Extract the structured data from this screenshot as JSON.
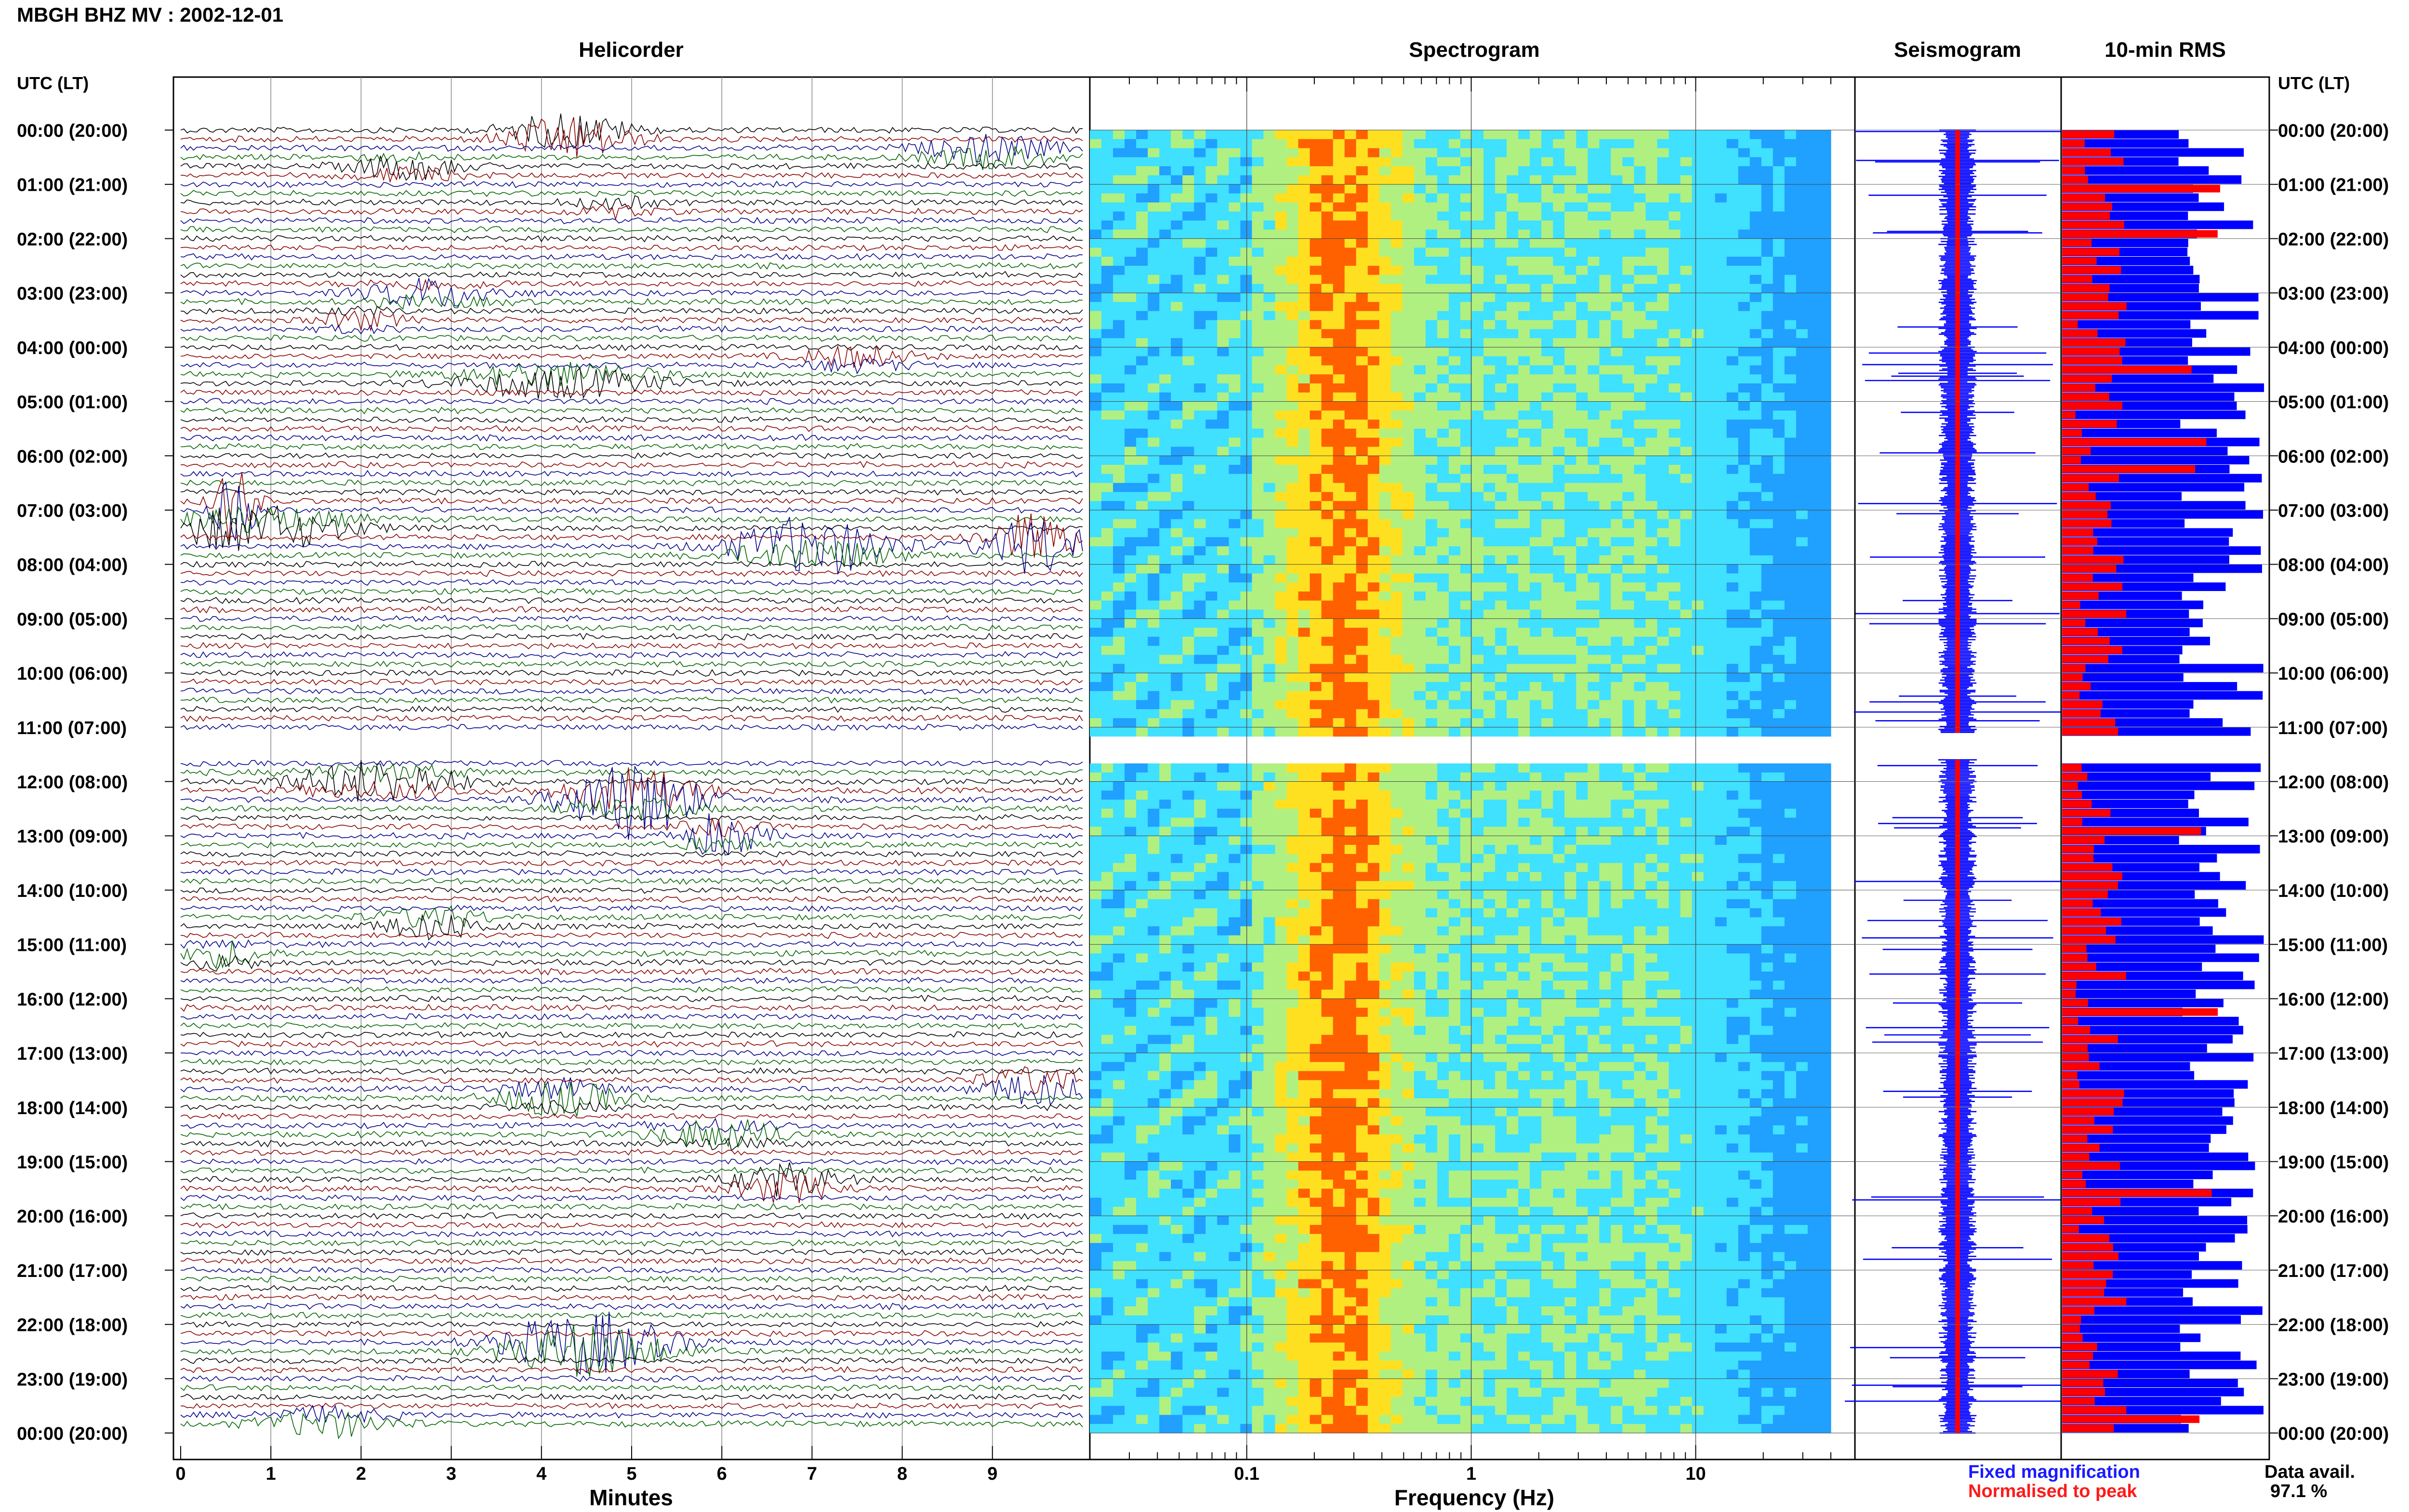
{
  "header": {
    "station": "MBGH BHZ MV : 2002-12-01"
  },
  "panels": {
    "helicorder": "Helicorder",
    "spectrogram": "Spectrogram",
    "seismogram": "Seismogram",
    "rms": "10-min RMS"
  },
  "axes": {
    "time_label_left": "UTC (LT)",
    "time_label_right": "UTC (LT)",
    "minutes_label": "Minutes",
    "frequency_label": "Frequency (Hz)",
    "minute_ticks": [
      "0",
      "1",
      "2",
      "3",
      "4",
      "5",
      "6",
      "7",
      "8",
      "9"
    ],
    "frequency_ticks": [
      "0.1",
      "1",
      "10"
    ],
    "hour_labels": [
      "00:00 (20:00)",
      "01:00 (21:00)",
      "02:00 (22:00)",
      "03:00 (23:00)",
      "04:00 (00:00)",
      "05:00 (01:00)",
      "06:00 (02:00)",
      "07:00 (03:00)",
      "08:00 (04:00)",
      "09:00 (05:00)",
      "10:00 (06:00)",
      "11:00 (07:00)",
      "12:00 (08:00)",
      "13:00 (09:00)",
      "14:00 (10:00)",
      "15:00 (11:00)",
      "16:00 (12:00)",
      "17:00 (13:00)",
      "18:00 (14:00)",
      "19:00 (15:00)",
      "20:00 (16:00)",
      "21:00 (17:00)",
      "22:00 (18:00)",
      "23:00 (19:00)",
      "00:00 (20:00)"
    ]
  },
  "legend": {
    "fixed": "Fixed magnification",
    "fixed_color": "#1a1aff",
    "normalised": "Normalised to peak",
    "normalised_color": "#ff1a1a"
  },
  "availability": {
    "label": "Data avail.",
    "value": "97.1 %"
  },
  "colors": {
    "trace_cycle": [
      "#000000",
      "#8b0000",
      "#00008b",
      "#006400"
    ],
    "rms_fixed": "#0000ff",
    "rms_normalised": "#ff0000",
    "spec_low": "#1030d0",
    "spec_mid": "#40d0ff",
    "spec_high": "#ffd000"
  },
  "chart_data": [
    {
      "type": "line",
      "title": "Helicorder",
      "xlabel": "Minutes",
      "ylabel": "UTC (LT)",
      "xlim": [
        0,
        10
      ],
      "rows": 144,
      "gap_hours": [
        11.1,
        11.6
      ]
    },
    {
      "type": "heatmap",
      "title": "Spectrogram",
      "xlabel": "Frequency (Hz)",
      "xscale": "log",
      "xlim": [
        0.02,
        40
      ]
    },
    {
      "type": "line",
      "title": "Seismogram"
    },
    {
      "type": "bar",
      "title": "10-min RMS",
      "series": [
        {
          "name": "Fixed magnification"
        },
        {
          "name": "Normalised to peak"
        }
      ]
    }
  ]
}
